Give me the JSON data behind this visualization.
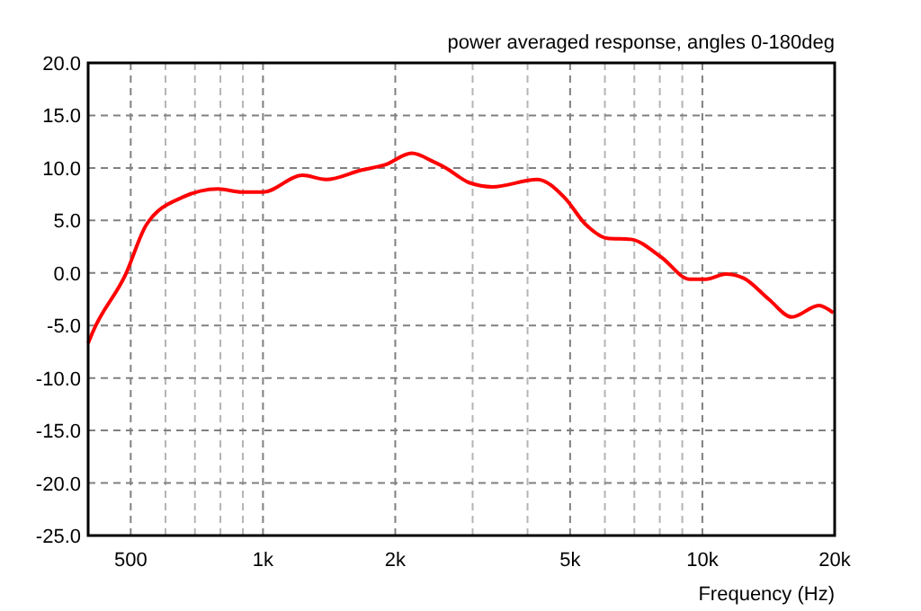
{
  "chart_data": {
    "type": "line",
    "title": "power averaged response, angles 0-180deg",
    "xlabel": "Frequency (Hz)",
    "log": "x",
    "grid": true,
    "marker": "none",
    "line_style": "solid",
    "xlim": [
      400,
      20000
    ],
    "ylim": [
      -25,
      20
    ],
    "xticks": [
      {
        "value": 500,
        "label": "500"
      },
      {
        "value": 600,
        "label": null
      },
      {
        "value": 700,
        "label": null
      },
      {
        "value": 800,
        "label": null
      },
      {
        "value": 900,
        "label": null
      },
      {
        "value": 1000,
        "label": "1k"
      },
      {
        "value": 2000,
        "label": "2k"
      },
      {
        "value": 3000,
        "label": null
      },
      {
        "value": 4000,
        "label": null
      },
      {
        "value": 5000,
        "label": "5k"
      },
      {
        "value": 6000,
        "label": null
      },
      {
        "value": 7000,
        "label": null
      },
      {
        "value": 8000,
        "label": null
      },
      {
        "value": 9000,
        "label": null
      },
      {
        "value": 10000,
        "label": "10k"
      },
      {
        "value": 20000,
        "label": "20k"
      }
    ],
    "yticks": [
      {
        "value": -25,
        "label": "-25.0"
      },
      {
        "value": -20,
        "label": "-20.0"
      },
      {
        "value": -15,
        "label": "-15.0"
      },
      {
        "value": -10,
        "label": "-10.0"
      },
      {
        "value": -5,
        "label": "-5.0"
      },
      {
        "value": 0,
        "label": "0.0"
      },
      {
        "value": 5,
        "label": "5.0"
      },
      {
        "value": 10,
        "label": "10.0"
      },
      {
        "value": 15,
        "label": "15.0"
      },
      {
        "value": 20,
        "label": "20.0"
      }
    ],
    "x": [
      400,
      409,
      486,
      543,
      655,
      791,
      893,
      1000,
      1230,
      1390,
      1676,
      1896,
      2180,
      2441,
      2608,
      2946,
      3330,
      4210,
      4850,
      5430,
      6080,
      6870,
      8060,
      9360,
      10190,
      11300,
      12420,
      14160,
      15990,
      18410,
      19860
    ],
    "series": [
      {
        "color": "#ff0000",
        "values": [
          -6.7,
          -5.7,
          -0.2,
          4.6,
          7.2,
          8.0,
          7.7,
          7.7,
          9.3,
          8.9,
          9.8,
          10.3,
          11.4,
          10.6,
          10.0,
          8.6,
          8.2,
          8.9,
          7.2,
          4.6,
          3.3,
          3.2,
          1.5,
          -0.6,
          -0.6,
          -0.1,
          -0.5,
          -2.5,
          -4.2,
          -3.1,
          -3.8
        ]
      }
    ]
  }
}
